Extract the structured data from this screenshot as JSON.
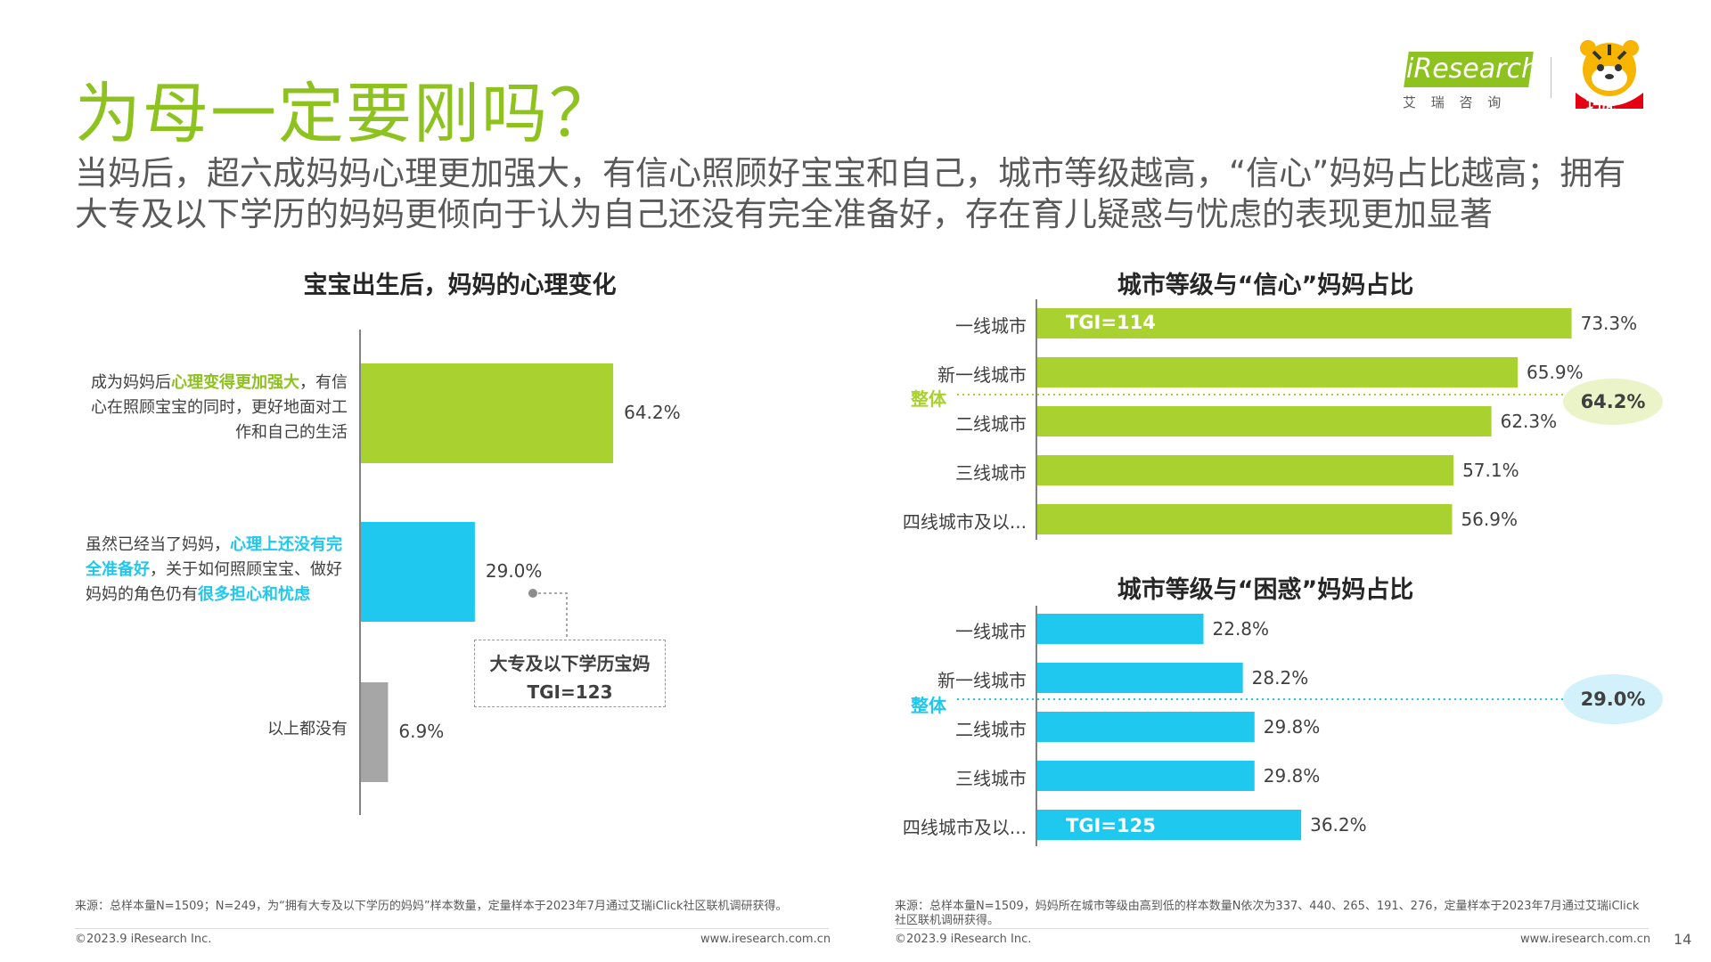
{
  "header": {
    "title": "为母一定要刚吗？",
    "subtitle": "当妈后，超六成妈妈心理更加强大，有信心照顾好宝宝和自己，城市等级越高，“信心”妈妈占比越高；拥有大专及以下学历的妈妈更倾向于认为自己还没有完全准备好，存在育儿疑惑与忧虑的表现更加显著",
    "logo_ir_i": "i",
    "logo_ir_text": "Research",
    "logo_ir_cn": "艾 瑞 咨 询",
    "logo_tiger_text": "巧虎"
  },
  "colors": {
    "green": "#a9d12f",
    "blue": "#1fc8ee",
    "gray": "#a6a6a6",
    "title_green": "#8dc21f"
  },
  "left_chart": {
    "title": "宝宝出生后，妈妈的心理变化",
    "categories": [
      {
        "pre": "成为妈妈后",
        "hl": "心理变得更加强大",
        "post": "，有信心在照顾宝宝的同时，更好地面对工作和自己的生活",
        "value_label": "64.2%"
      },
      {
        "pre": "虽然已经当了妈妈，",
        "hl": "心理上还没有完全准备好",
        "mid": "，关于如何照顾宝宝、做好妈妈的角色仍有",
        "hl2": "很多担心和忧虑",
        "value_label": "29.0%"
      },
      {
        "pre": "以上都没有",
        "value_label": "6.9%"
      }
    ],
    "callout": {
      "line1": "大专及以下学历宝妈",
      "line2": "TGI=123"
    },
    "note": "来源：总样本量N=1509；N=249，为“拥有大专及以下学历的妈妈”样本数量，定量样本于2023年7月通过艾瑞iClick社区联机调研获得。"
  },
  "right_top": {
    "title": "城市等级与“信心”妈妈占比",
    "overall_label": "整体",
    "overall_value": "64.2%",
    "tgi_label": "TGI=114",
    "labels": [
      "一线城市",
      "新一线城市",
      "二线城市",
      "三线城市",
      "四线城市及以..."
    ],
    "value_labels": [
      "73.3%",
      "65.9%",
      "62.3%",
      "57.1%",
      "56.9%"
    ]
  },
  "right_bottom": {
    "title": "城市等级与“困惑”妈妈占比",
    "overall_label": "整体",
    "overall_value": "29.0%",
    "tgi_label": "TGI=125",
    "labels": [
      "一线城市",
      "新一线城市",
      "二线城市",
      "三线城市",
      "四线城市及以..."
    ],
    "value_labels": [
      "22.8%",
      "28.2%",
      "29.8%",
      "29.8%",
      "36.2%"
    ],
    "note": "来源：总样本量N=1509，妈妈所在城市等级由高到低的样本数量N依次为337、440、265、191、276，定量样本于2023年7月通过艾瑞iClick社区联机调研获得。"
  },
  "footer": {
    "copyright_left": "©2023.9 iResearch Inc.",
    "url_left": "www.iresearch.com.cn",
    "copyright_right": "©2023.9 iResearch Inc.",
    "url_right": "www.iresearch.com.cn",
    "page": "14"
  },
  "chart_data": [
    {
      "type": "bar",
      "title": "宝宝出生后，妈妈的心理变化",
      "categories": [
        "心理变得更加强大",
        "心理上还没有完全准备好",
        "以上都没有"
      ],
      "values": [
        64.2,
        29.0,
        6.9
      ],
      "colors": [
        "#a9d12f",
        "#1fc8ee",
        "#a6a6a6"
      ],
      "annotations": [
        "大专及以下学历宝妈 TGI=123"
      ]
    },
    {
      "type": "bar",
      "title": "城市等级与“信心”妈妈占比",
      "categories": [
        "一线城市",
        "新一线城市",
        "二线城市",
        "三线城市",
        "四线城市及以..."
      ],
      "values": [
        73.3,
        65.9,
        62.3,
        57.1,
        56.9
      ],
      "reference_line": {
        "label": "整体",
        "value": 64.2
      },
      "annotations": [
        "TGI=114"
      ]
    },
    {
      "type": "bar",
      "title": "城市等级与“困惑”妈妈占比",
      "categories": [
        "一线城市",
        "新一线城市",
        "二线城市",
        "三线城市",
        "四线城市及以..."
      ],
      "values": [
        22.8,
        28.2,
        29.8,
        29.8,
        36.2
      ],
      "reference_line": {
        "label": "整体",
        "value": 29.0
      },
      "annotations": [
        "TGI=125"
      ]
    }
  ]
}
